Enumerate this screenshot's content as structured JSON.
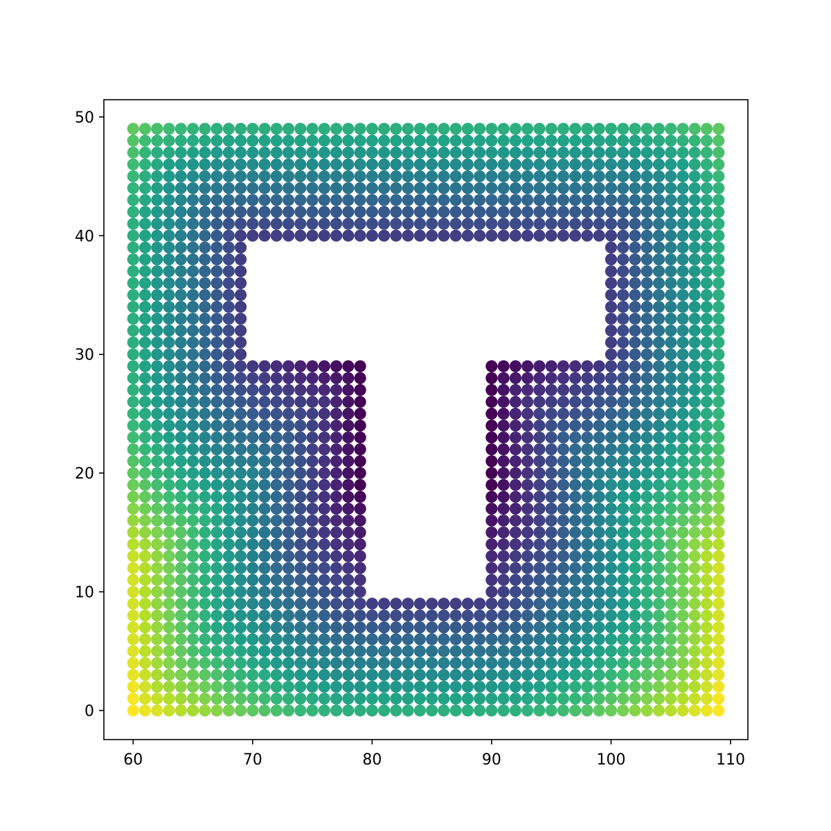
{
  "chart_data": {
    "type": "scatter",
    "title": "",
    "xlabel": "",
    "ylabel": "",
    "xlim": [
      57.55,
      111.45
    ],
    "ylim": [
      -2.45,
      51.45
    ],
    "x_ticks": [
      60,
      70,
      80,
      90,
      100,
      110
    ],
    "y_ticks": [
      0,
      10,
      20,
      30,
      40,
      50
    ],
    "x_tick_labels": [
      "60",
      "70",
      "80",
      "90",
      "100",
      "110"
    ],
    "y_tick_labels": [
      "0",
      "10",
      "20",
      "30",
      "40",
      "50"
    ],
    "grid": false,
    "legend": "none",
    "point_color_map": "viridis",
    "grid_points": {
      "x_range": [
        60,
        109
      ],
      "y_range": [
        0,
        49
      ],
      "step": 1,
      "excluded_region": {
        "description": "T-shaped hole",
        "top_bar": {
          "x": [
            70,
            99
          ],
          "y": [
            30,
            39
          ]
        },
        "stem": {
          "x": [
            80,
            89
          ],
          "y": [
            10,
            29
          ]
        }
      }
    },
    "color_scale": {
      "map": "viridis",
      "stops": [
        "#440154",
        "#482878",
        "#3e4989",
        "#31688e",
        "#26828e",
        "#1f9e89",
        "#35b779",
        "#6ece58",
        "#b5de2b",
        "#fde725"
      ],
      "meaning": "distance from T-shaped boundary (dark = near, yellow = far corners)"
    }
  }
}
